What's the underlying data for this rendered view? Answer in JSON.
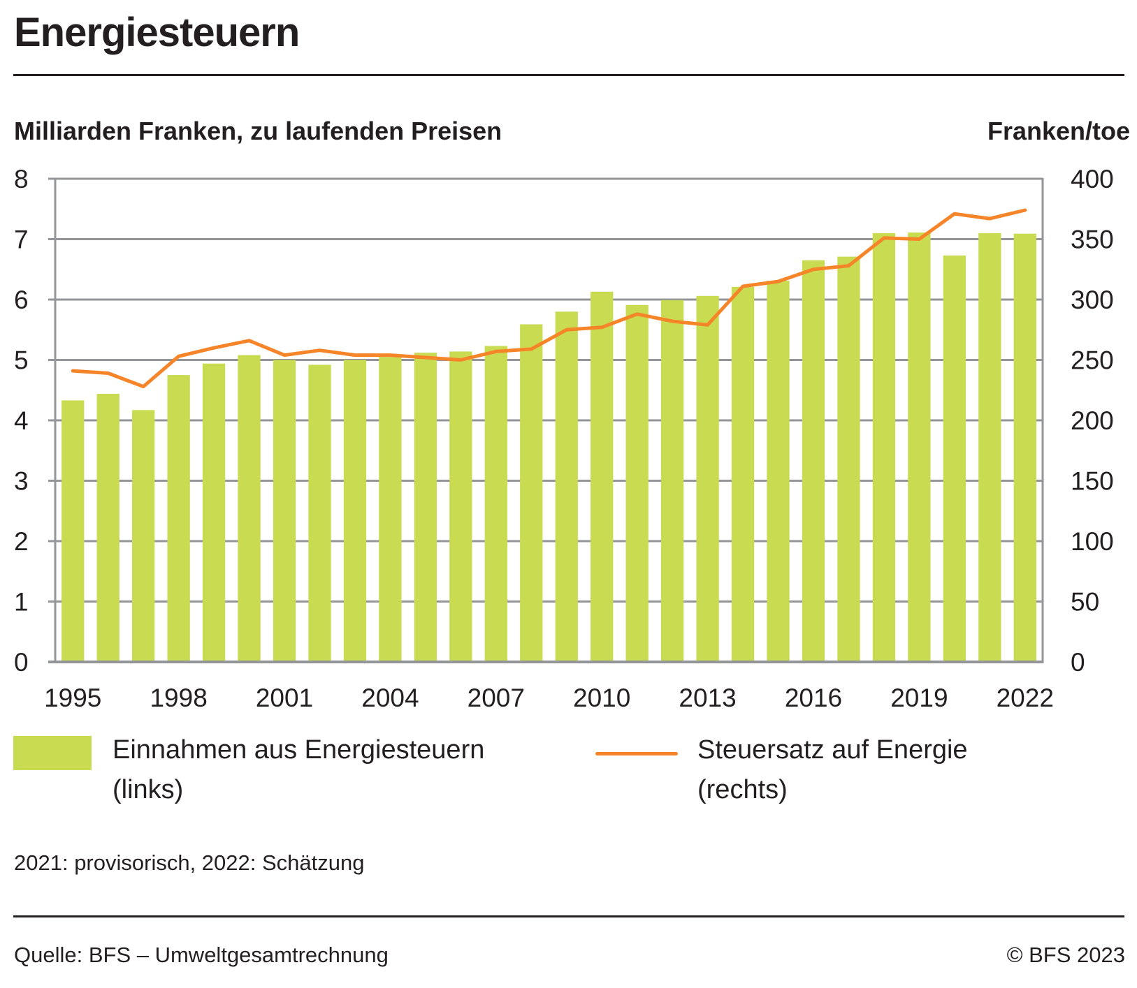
{
  "header": {
    "title": "Energiesteuern"
  },
  "chart_data": {
    "type": "bar",
    "title": "Energiesteuern",
    "ylabel": "Milliarden Franken, zu laufenden Preisen",
    "y2label": "Franken/toe",
    "xlabel": "",
    "ylim": [
      0,
      8
    ],
    "y2lim": [
      0,
      400
    ],
    "yticks": [
      "0",
      "1",
      "2",
      "3",
      "4",
      "5",
      "6",
      "7",
      "8"
    ],
    "y2ticks": [
      "0",
      "50",
      "100",
      "150",
      "200",
      "250",
      "300",
      "350",
      "400"
    ],
    "xticks": [
      "1995",
      "1998",
      "2001",
      "2004",
      "2007",
      "2010",
      "2013",
      "2016",
      "2019",
      "2022"
    ],
    "grid": true,
    "categories": [
      "1995",
      "1996",
      "1997",
      "1998",
      "1999",
      "2000",
      "2001",
      "2002",
      "2003",
      "2004",
      "2005",
      "2006",
      "2007",
      "2008",
      "2009",
      "2010",
      "2011",
      "2012",
      "2013",
      "2014",
      "2015",
      "2016",
      "2017",
      "2018",
      "2019",
      "2020",
      "2021",
      "2022"
    ],
    "series": [
      {
        "name": "Einnahmen aus Energiesteuern (links)",
        "type": "bar",
        "axis": "left",
        "color": "#c8db51",
        "values": [
          4.33,
          4.44,
          4.17,
          4.75,
          4.94,
          5.08,
          5.0,
          4.92,
          5.0,
          5.05,
          5.12,
          5.14,
          5.23,
          5.59,
          5.8,
          6.13,
          5.91,
          5.99,
          6.06,
          6.21,
          6.31,
          6.65,
          6.71,
          7.1,
          7.11,
          6.73,
          7.1,
          7.09
        ]
      },
      {
        "name": "Steuersatz auf Energie (rechts)",
        "type": "line",
        "axis": "right",
        "color": "#f6852a",
        "values": [
          241,
          239,
          228,
          253,
          260,
          266,
          254,
          258,
          254,
          254,
          252,
          250,
          257,
          259,
          275,
          277,
          288,
          282,
          279,
          311,
          315,
          325,
          328,
          351,
          350,
          371,
          367,
          374
        ]
      }
    ],
    "legend_position": "bottom"
  },
  "legend": {
    "bars_line1": "Einnahmen aus Energiesteuern",
    "bars_line2": "(links)",
    "line_line1": "Steuersatz auf Energie",
    "line_line2": "(rechts)"
  },
  "footer": {
    "note": "2021: provisorisch, 2022: Schätzung",
    "source": "Quelle: BFS – Umweltgesamtrechnung",
    "copyright": "© BFS 2023"
  }
}
